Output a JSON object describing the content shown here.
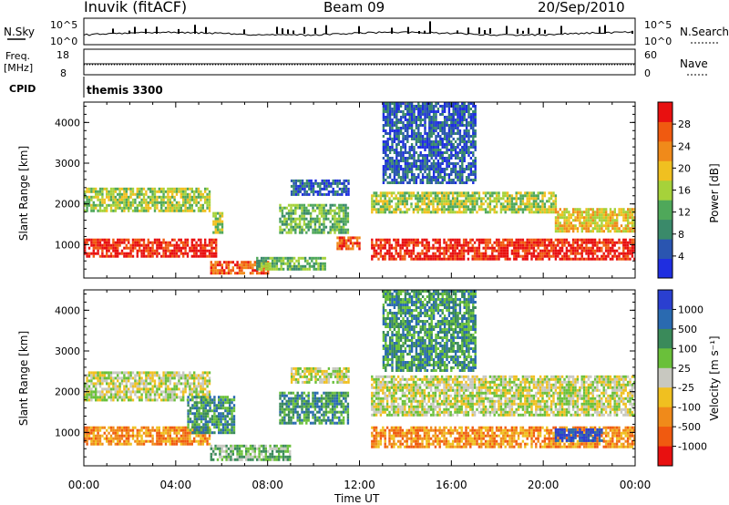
{
  "header": {
    "station": "Inuvik (fitACF)",
    "beam": "Beam 09",
    "date": "20/Sep/2010"
  },
  "strip_panels": {
    "noise": {
      "left_label": "N.Sky",
      "right_label": "N.Search",
      "left_ticks": [
        "10^5",
        "10^0"
      ],
      "right_ticks": [
        "10^5",
        "10^0"
      ]
    },
    "frequency": {
      "left_label_line1": "Freq.",
      "left_label_line2": "[MHz]",
      "right_label": "Nave",
      "left_ticks": [
        "18",
        "8"
      ],
      "right_ticks": [
        "60",
        "0"
      ]
    },
    "cpid": {
      "label": "CPID",
      "value": "themis 3300"
    }
  },
  "colors": {
    "power_scale": [
      "#1f2ee0",
      "#2a55b0",
      "#3a8a6a",
      "#4fa85a",
      "#a6d23a",
      "#f0c020",
      "#f08a1a",
      "#f05a10",
      "#e81010"
    ],
    "velocity_scale": [
      "#2a3fd0",
      "#2a6ab0",
      "#3a8a5a",
      "#6ac03a",
      "#c8c8c0",
      "#f0c020",
      "#f08a1a",
      "#f05a10",
      "#e81010"
    ]
  },
  "chart_data": [
    {
      "type": "heatmap",
      "name": "power",
      "xlabel": "",
      "ylabel": "Slant Range [km]",
      "x_ticks": [
        "00:00",
        "04:00",
        "08:00",
        "12:00",
        "16:00",
        "20:00",
        "00:00"
      ],
      "y_ticks": [
        "1000",
        "2000",
        "3000",
        "4000"
      ],
      "xlim_hours": [
        0,
        24
      ],
      "ylim_km": [
        180,
        4500
      ],
      "colorbar": {
        "label": "Power [dB]",
        "ticks": [
          "4",
          "8",
          "12",
          "16",
          "20",
          "24",
          "28"
        ]
      },
      "bands": [
        {
          "t0": 0.0,
          "t1": 5.8,
          "r0": 700,
          "r1": 1150,
          "level": 8
        },
        {
          "t0": 0.0,
          "t1": 5.5,
          "r0": 1800,
          "r1": 2400,
          "level": 4
        },
        {
          "t0": 5.6,
          "t1": 6.0,
          "r0": 1300,
          "r1": 1800,
          "level": 4
        },
        {
          "t0": 5.5,
          "t1": 8.0,
          "r0": 300,
          "r1": 600,
          "level": 7
        },
        {
          "t0": 7.5,
          "t1": 10.5,
          "r0": 400,
          "r1": 700,
          "level": 3
        },
        {
          "t0": 8.5,
          "t1": 11.5,
          "r0": 1300,
          "r1": 2000,
          "level": 3
        },
        {
          "t0": 9.0,
          "t1": 11.5,
          "r0": 2200,
          "r1": 2600,
          "level": 1
        },
        {
          "t0": 11.0,
          "t1": 12.0,
          "r0": 900,
          "r1": 1200,
          "level": 7
        },
        {
          "t0": 12.5,
          "t1": 24.0,
          "r0": 650,
          "r1": 1150,
          "level": 8
        },
        {
          "t0": 12.5,
          "t1": 20.5,
          "r0": 1800,
          "r1": 2300,
          "level": 4
        },
        {
          "t0": 20.5,
          "t1": 24.0,
          "r0": 1300,
          "r1": 1900,
          "level": 5
        },
        {
          "t0": 13.0,
          "t1": 17.0,
          "r0": 2500,
          "r1": 4500,
          "level": 1
        }
      ]
    },
    {
      "type": "heatmap",
      "name": "velocity",
      "xlabel": "Time UT",
      "ylabel": "Slant Range [km]",
      "x_ticks": [
        "00:00",
        "04:00",
        "08:00",
        "12:00",
        "16:00",
        "20:00",
        "00:00"
      ],
      "y_ticks": [
        "1000",
        "2000",
        "3000",
        "4000"
      ],
      "xlim_hours": [
        0,
        24
      ],
      "ylim_km": [
        180,
        4500
      ],
      "colorbar": {
        "label": "Velocity [m s⁻¹]",
        "ticks": [
          "1000",
          "500",
          "100",
          "25",
          "-25",
          "-100",
          "-500",
          "-1000"
        ]
      },
      "bands": [
        {
          "t0": 0.0,
          "t1": 5.5,
          "r0": 700,
          "r1": 1150,
          "level": 6
        },
        {
          "t0": 0.0,
          "t1": 5.5,
          "r0": 1800,
          "r1": 2500,
          "level": 4
        },
        {
          "t0": 4.5,
          "t1": 6.5,
          "r0": 1000,
          "r1": 1900,
          "level": 2
        },
        {
          "t0": 5.5,
          "t1": 9.0,
          "r0": 300,
          "r1": 700,
          "level": 3
        },
        {
          "t0": 8.5,
          "t1": 11.5,
          "r0": 1200,
          "r1": 2000,
          "level": 2
        },
        {
          "t0": 9.0,
          "t1": 11.5,
          "r0": 2200,
          "r1": 2600,
          "level": 4
        },
        {
          "t0": 12.5,
          "t1": 24.0,
          "r0": 650,
          "r1": 1150,
          "level": 6
        },
        {
          "t0": 12.5,
          "t1": 24.0,
          "r0": 1400,
          "r1": 2400,
          "level": 4
        },
        {
          "t0": 20.5,
          "t1": 22.5,
          "r0": 800,
          "r1": 1100,
          "level": 0
        },
        {
          "t0": 13.0,
          "t1": 17.0,
          "r0": 2500,
          "r1": 4500,
          "level": 2
        }
      ]
    }
  ]
}
